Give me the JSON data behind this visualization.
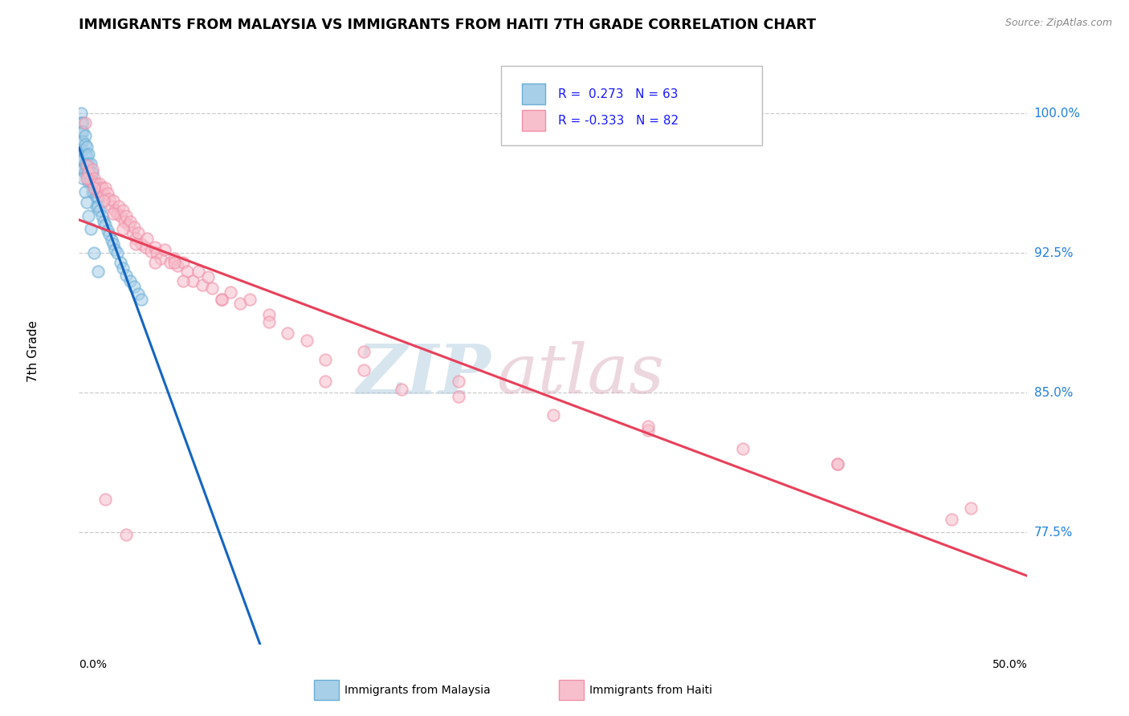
{
  "title": "IMMIGRANTS FROM MALAYSIA VS IMMIGRANTS FROM HAITI 7TH GRADE CORRELATION CHART",
  "source": "Source: ZipAtlas.com",
  "ylabel": "7th Grade",
  "yaxis_values": [
    0.775,
    0.85,
    0.925,
    1.0
  ],
  "yaxis_labels": [
    "77.5%",
    "85.0%",
    "92.5%",
    "100.0%"
  ],
  "xmin": 0.0,
  "xmax": 0.5,
  "ymin": 0.715,
  "ymax": 1.03,
  "malaysia_R": 0.273,
  "malaysia_N": 63,
  "haiti_R": -0.333,
  "haiti_N": 82,
  "malaysia_face": "#a8cfe8",
  "malaysia_edge": "#6aaed6",
  "haiti_face": "#f7bfcc",
  "haiti_edge": "#f090a8",
  "malaysia_line_color": "#1565c0",
  "haiti_line_color": "#e8405a",
  "marker_size": 110,
  "background_color": "#ffffff",
  "grid_color": "#cccccc",
  "title_fontsize": 12.5,
  "right_label_color": "#2080e0",
  "legend_text_color": "#1a1aff",
  "malaysia_x": [
    0.001,
    0.001,
    0.001,
    0.001,
    0.001,
    0.001,
    0.001,
    0.002,
    0.002,
    0.002,
    0.002,
    0.002,
    0.002,
    0.003,
    0.003,
    0.003,
    0.003,
    0.003,
    0.004,
    0.004,
    0.004,
    0.004,
    0.005,
    0.005,
    0.005,
    0.005,
    0.006,
    0.006,
    0.006,
    0.007,
    0.007,
    0.007,
    0.008,
    0.008,
    0.009,
    0.009,
    0.009,
    0.01,
    0.01,
    0.011,
    0.012,
    0.013,
    0.014,
    0.015,
    0.016,
    0.017,
    0.018,
    0.019,
    0.02,
    0.022,
    0.023,
    0.025,
    0.027,
    0.029,
    0.031,
    0.033,
    0.002,
    0.003,
    0.004,
    0.005,
    0.006,
    0.008,
    0.01
  ],
  "malaysia_y": [
    1.0,
    0.995,
    0.99,
    0.985,
    0.98,
    0.975,
    0.97,
    0.995,
    0.99,
    0.985,
    0.98,
    0.975,
    0.97,
    0.988,
    0.983,
    0.978,
    0.973,
    0.968,
    0.982,
    0.977,
    0.972,
    0.967,
    0.978,
    0.973,
    0.968,
    0.963,
    0.973,
    0.968,
    0.963,
    0.968,
    0.963,
    0.958,
    0.963,
    0.958,
    0.96,
    0.955,
    0.95,
    0.955,
    0.95,
    0.948,
    0.945,
    0.942,
    0.94,
    0.937,
    0.935,
    0.932,
    0.93,
    0.927,
    0.925,
    0.92,
    0.917,
    0.913,
    0.91,
    0.907,
    0.903,
    0.9,
    0.965,
    0.958,
    0.952,
    0.945,
    0.938,
    0.925,
    0.915
  ],
  "haiti_x": [
    0.003,
    0.004,
    0.005,
    0.006,
    0.007,
    0.008,
    0.009,
    0.01,
    0.011,
    0.012,
    0.013,
    0.014,
    0.015,
    0.016,
    0.017,
    0.018,
    0.019,
    0.02,
    0.021,
    0.022,
    0.023,
    0.024,
    0.025,
    0.026,
    0.027,
    0.028,
    0.029,
    0.03,
    0.031,
    0.033,
    0.035,
    0.036,
    0.038,
    0.04,
    0.041,
    0.043,
    0.045,
    0.048,
    0.05,
    0.052,
    0.055,
    0.057,
    0.06,
    0.063,
    0.065,
    0.068,
    0.07,
    0.075,
    0.08,
    0.085,
    0.09,
    0.1,
    0.11,
    0.12,
    0.13,
    0.15,
    0.17,
    0.2,
    0.25,
    0.3,
    0.35,
    0.4,
    0.13,
    0.004,
    0.008,
    0.013,
    0.018,
    0.023,
    0.03,
    0.04,
    0.055,
    0.075,
    0.1,
    0.15,
    0.2,
    0.3,
    0.4,
    0.47,
    0.46,
    0.014,
    0.025,
    0.05
  ],
  "haiti_y": [
    0.995,
    0.972,
    0.968,
    0.964,
    0.97,
    0.965,
    0.962,
    0.958,
    0.962,
    0.96,
    0.956,
    0.96,
    0.957,
    0.954,
    0.95,
    0.953,
    0.948,
    0.946,
    0.95,
    0.945,
    0.948,
    0.942,
    0.945,
    0.94,
    0.942,
    0.936,
    0.939,
    0.933,
    0.936,
    0.93,
    0.928,
    0.933,
    0.926,
    0.928,
    0.925,
    0.922,
    0.927,
    0.92,
    0.922,
    0.918,
    0.92,
    0.915,
    0.91,
    0.915,
    0.908,
    0.912,
    0.906,
    0.9,
    0.904,
    0.898,
    0.9,
    0.892,
    0.882,
    0.878,
    0.868,
    0.862,
    0.852,
    0.848,
    0.838,
    0.83,
    0.82,
    0.812,
    0.856,
    0.965,
    0.96,
    0.953,
    0.946,
    0.938,
    0.93,
    0.92,
    0.91,
    0.9,
    0.888,
    0.872,
    0.856,
    0.832,
    0.812,
    0.788,
    0.782,
    0.793,
    0.774,
    0.92
  ]
}
